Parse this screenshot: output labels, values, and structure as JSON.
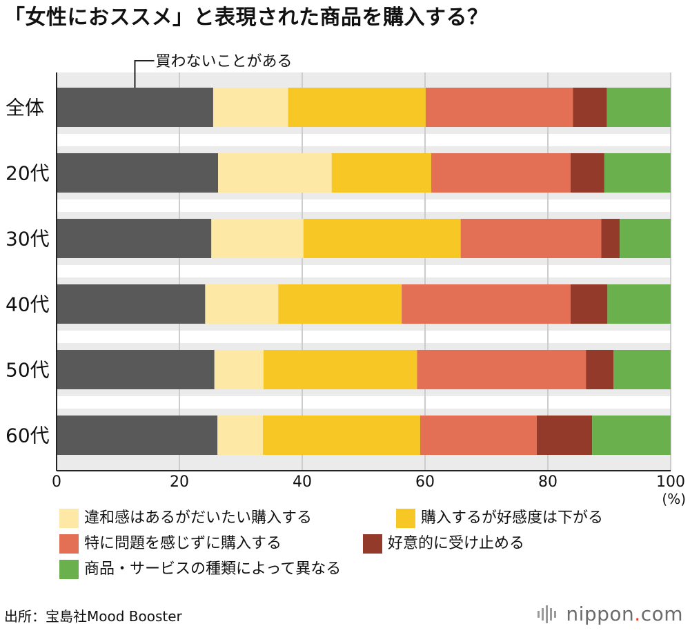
{
  "title": "「女性におススメ」と表現された商品を購入する？",
  "source": "出所：宝島社Mood Booster",
  "brand": {
    "name_prefix": "nippon",
    "dot": ".",
    "name_suffix": "com",
    "icon": "nippon-logo-icon"
  },
  "colors": {
    "background": "#ffffff",
    "grid": "#cccccc",
    "band": "#ebebeb",
    "axis": "#222222"
  },
  "chart_data": {
    "type": "bar",
    "orientation": "horizontal",
    "stacked": true,
    "title": "「女性におススメ」と表現された商品を購入する？",
    "annotation": "買わないことがある",
    "categories": [
      "全体",
      "20代",
      "30代",
      "40代",
      "50代",
      "60代"
    ],
    "xlabel": "(%)",
    "xlim": [
      0,
      100
    ],
    "xticks": [
      "0",
      "20",
      "40",
      "60",
      "80",
      "100"
    ],
    "grid": true,
    "legend_position": "bottom",
    "series": [
      {
        "color": "#595959",
        "values": [
          25.5,
          26.3,
          25.2,
          24.2,
          25.7,
          26.2
        ]
      },
      {
        "name": "違和感はあるがだいたい購入する",
        "color": "#fde8a6",
        "values": [
          12.2,
          18.5,
          15.0,
          11.9,
          8.0,
          7.4
        ]
      },
      {
        "name": "購入するが好感度は下がる",
        "color": "#f7c725",
        "values": [
          22.4,
          16.2,
          25.6,
          20.1,
          25.0,
          25.6
        ]
      },
      {
        "name": "特に問題を感じずに購入する",
        "color": "#e37055",
        "values": [
          24.0,
          22.7,
          22.9,
          27.5,
          27.5,
          19.0
        ]
      },
      {
        "name": "好意的に受け止める",
        "color": "#943a2b",
        "values": [
          5.5,
          5.5,
          3.0,
          6.0,
          4.5,
          9.0
        ]
      },
      {
        "name": "商品・サービスの種類によって異なる",
        "color": "#6ab04c",
        "values": [
          10.4,
          10.8,
          8.3,
          10.3,
          9.3,
          12.8
        ]
      }
    ]
  }
}
